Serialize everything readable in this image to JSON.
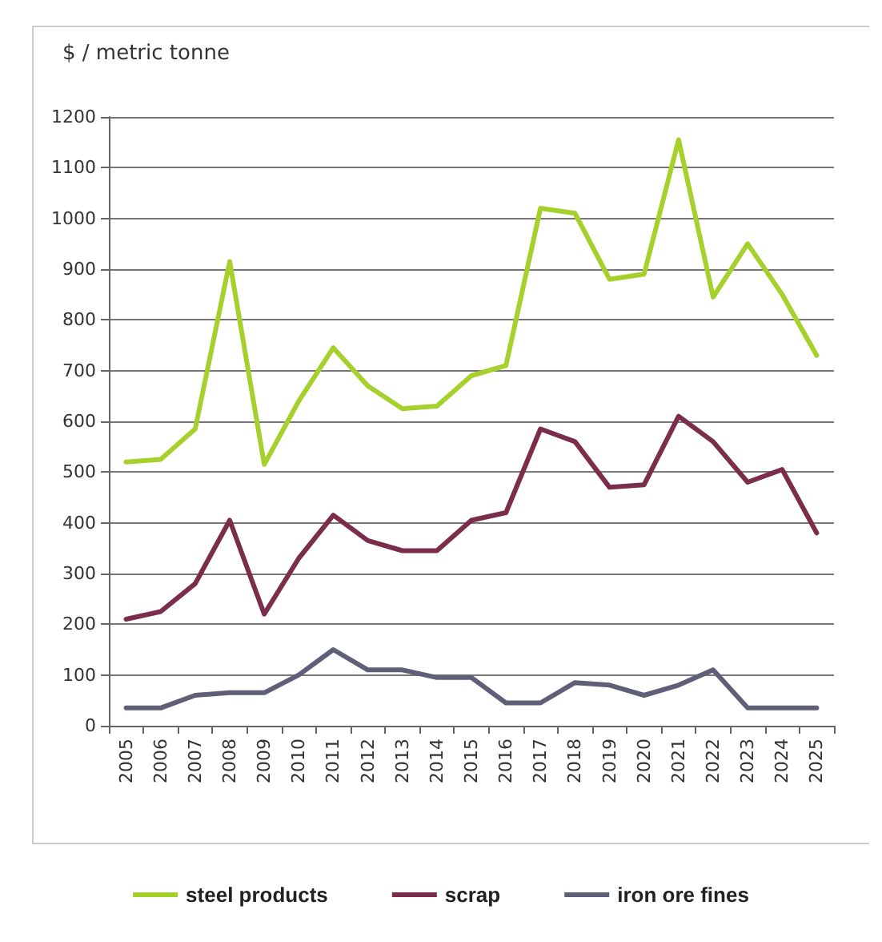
{
  "chart_data": {
    "type": "line",
    "ylabel": "$ / metric tonne",
    "categories": [
      "2005",
      "2006",
      "2007",
      "2008",
      "2009",
      "2010",
      "2011",
      "2012",
      "2013",
      "2014",
      "2015",
      "2016",
      "2017",
      "2018",
      "2019",
      "2020",
      "2021",
      "2022",
      "2023",
      "2024",
      "2025"
    ],
    "series": [
      {
        "name": "steel products",
        "color": "#a6d12c",
        "values": [
          520,
          525,
          585,
          915,
          515,
          640,
          745,
          670,
          625,
          630,
          690,
          710,
          1020,
          1010,
          880,
          890,
          1155,
          845,
          950,
          850,
          730
        ]
      },
      {
        "name": "scrap",
        "color": "#7a2e4c",
        "values": [
          210,
          225,
          280,
          405,
          220,
          330,
          415,
          365,
          345,
          345,
          405,
          420,
          585,
          560,
          470,
          475,
          610,
          560,
          480,
          505,
          380
        ]
      },
      {
        "name": "iron ore fines",
        "color": "#5f6078",
        "values": [
          35,
          35,
          60,
          65,
          65,
          100,
          150,
          110,
          110,
          95,
          95,
          45,
          45,
          85,
          80,
          60,
          80,
          110,
          35,
          35,
          35
        ]
      }
    ],
    "ylim": [
      0,
      1200
    ],
    "yticks": [
      0,
      100,
      200,
      300,
      400,
      500,
      600,
      700,
      800,
      900,
      1000,
      1100,
      1200
    ],
    "grid": "y",
    "legend": "bottom",
    "marker": "none",
    "line_style": "solid"
  }
}
